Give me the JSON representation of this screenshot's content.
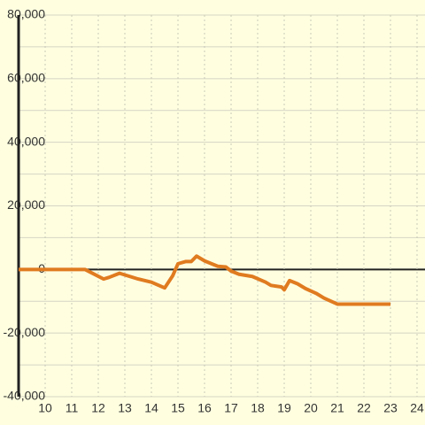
{
  "chart_data": {
    "type": "line",
    "x": [
      9,
      11.5,
      12.2,
      12.4,
      12.8,
      13.5,
      14.0,
      14.5,
      14.8,
      15.0,
      15.3,
      15.5,
      15.7,
      16.0,
      16.5,
      16.8,
      17.0,
      17.3,
      17.8,
      18.3,
      18.5,
      18.9,
      19.0,
      19.2,
      19.5,
      19.8,
      20.2,
      20.5,
      21.0,
      23.0
    ],
    "series": [
      {
        "color": "#e07b20",
        "values": [
          0,
          0,
          -3000,
          -2500,
          -1200,
          -3000,
          -4000,
          -5800,
          -2000,
          1800,
          2500,
          2500,
          4200,
          2700,
          1000,
          800,
          -500,
          -1500,
          -2200,
          -4000,
          -5000,
          -5500,
          -6400,
          -3500,
          -4500,
          -6000,
          -7500,
          -9000,
          -10900,
          -10900
        ]
      }
    ],
    "xlim": [
      9,
      24.3
    ],
    "xticks": [
      10,
      11,
      12,
      13,
      14,
      15,
      16,
      17,
      18,
      19,
      20,
      21,
      22,
      23,
      24
    ],
    "ylim": [
      -40000,
      80000
    ],
    "yticks": [
      {
        "value": -40000,
        "label": "-40,000"
      },
      {
        "value": -20000,
        "label": "-20,000"
      },
      0,
      {
        "value": 20000,
        "label": "20,000"
      },
      {
        "value": 40000,
        "label": "40,000"
      },
      {
        "value": 60000,
        "label": "60,000"
      },
      {
        "value": 80000,
        "label": "80,000"
      }
    ],
    "grid": true
  }
}
